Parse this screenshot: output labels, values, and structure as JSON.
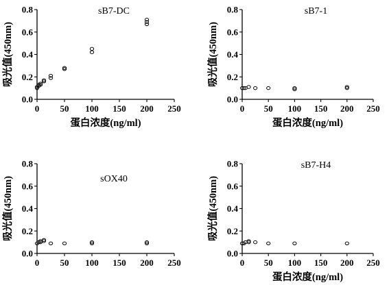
{
  "chart_data": [
    {
      "type": "scatter",
      "title": "sB7-DC",
      "xlabel": "蛋白浓度(ng/ml)",
      "ylabel": "吸光值(450nm)",
      "xlim": [
        0,
        250
      ],
      "ylim": [
        0,
        0.8
      ],
      "xticks": [
        "0",
        "50",
        "100",
        "150",
        "200",
        "250"
      ],
      "yticks": [
        "0.0",
        "0.2",
        "0.4",
        "0.6",
        "0.8"
      ],
      "title_position": "top",
      "points": [
        {
          "x": 0,
          "y": 0.1
        },
        {
          "x": 0,
          "y": 0.11
        },
        {
          "x": 3.125,
          "y": 0.12
        },
        {
          "x": 3.125,
          "y": 0.13
        },
        {
          "x": 6.25,
          "y": 0.13
        },
        {
          "x": 6.25,
          "y": 0.14
        },
        {
          "x": 12.5,
          "y": 0.16
        },
        {
          "x": 12.5,
          "y": 0.17
        },
        {
          "x": 25,
          "y": 0.19
        },
        {
          "x": 25,
          "y": 0.21
        },
        {
          "x": 50,
          "y": 0.27
        },
        {
          "x": 50,
          "y": 0.28
        },
        {
          "x": 100,
          "y": 0.42
        },
        {
          "x": 100,
          "y": 0.45
        },
        {
          "x": 200,
          "y": 0.67
        },
        {
          "x": 200,
          "y": 0.69
        },
        {
          "x": 200,
          "y": 0.71
        }
      ]
    },
    {
      "type": "scatter",
      "title": "sB7-1",
      "xlabel": "蛋白浓度(ng/ml)",
      "ylabel": "吸光值(450nm)",
      "xlim": [
        0,
        250
      ],
      "ylim": [
        0,
        0.8
      ],
      "xticks": [
        "0",
        "50",
        "100",
        "150",
        "200",
        "250"
      ],
      "yticks": [
        "0.0",
        "0.2",
        "0.4",
        "0.6",
        "0.8"
      ],
      "title_position": "top",
      "points": [
        {
          "x": 0,
          "y": 0.1
        },
        {
          "x": 3.125,
          "y": 0.1
        },
        {
          "x": 6.25,
          "y": 0.1
        },
        {
          "x": 12.5,
          "y": 0.11
        },
        {
          "x": 25,
          "y": 0.1
        },
        {
          "x": 50,
          "y": 0.1
        },
        {
          "x": 100,
          "y": 0.09
        },
        {
          "x": 100,
          "y": 0.1
        },
        {
          "x": 200,
          "y": 0.1
        },
        {
          "x": 200,
          "y": 0.11
        }
      ]
    },
    {
      "type": "scatter",
      "title": "sOX40",
      "xlabel": "",
      "ylabel": "吸光值(450nm)",
      "xlim": [
        0,
        250
      ],
      "ylim": [
        0,
        0.8
      ],
      "xticks": [
        "0",
        "50",
        "100",
        "150",
        "200",
        "250"
      ],
      "yticks": [
        "0.0",
        "0.2",
        "0.4",
        "0.6",
        "0.8"
      ],
      "title_position": "middle",
      "points": [
        {
          "x": 0,
          "y": 0.09
        },
        {
          "x": 3.125,
          "y": 0.1
        },
        {
          "x": 6.25,
          "y": 0.1
        },
        {
          "x": 6.25,
          "y": 0.11
        },
        {
          "x": 12.5,
          "y": 0.11
        },
        {
          "x": 12.5,
          "y": 0.12
        },
        {
          "x": 25,
          "y": 0.09
        },
        {
          "x": 50,
          "y": 0.09
        },
        {
          "x": 100,
          "y": 0.09
        },
        {
          "x": 100,
          "y": 0.1
        },
        {
          "x": 200,
          "y": 0.09
        },
        {
          "x": 200,
          "y": 0.1
        }
      ]
    },
    {
      "type": "scatter",
      "title": "sB7-H4",
      "xlabel": "蛋白浓度(ng/ml)",
      "ylabel": "吸光值(450nm)",
      "xlim": [
        0,
        250
      ],
      "ylim": [
        0,
        0.8
      ],
      "xticks": [
        "0",
        "50",
        "100",
        "150",
        "200",
        "250"
      ],
      "yticks": [
        "0.0",
        "0.2",
        "0.4",
        "0.6",
        "0.8"
      ],
      "title_position": "top",
      "points": [
        {
          "x": 0,
          "y": 0.09
        },
        {
          "x": 3.125,
          "y": 0.09
        },
        {
          "x": 6.25,
          "y": 0.1
        },
        {
          "x": 12.5,
          "y": 0.1
        },
        {
          "x": 12.5,
          "y": 0.11
        },
        {
          "x": 25,
          "y": 0.1
        },
        {
          "x": 50,
          "y": 0.09
        },
        {
          "x": 100,
          "y": 0.09
        },
        {
          "x": 200,
          "y": 0.09
        }
      ]
    }
  ]
}
